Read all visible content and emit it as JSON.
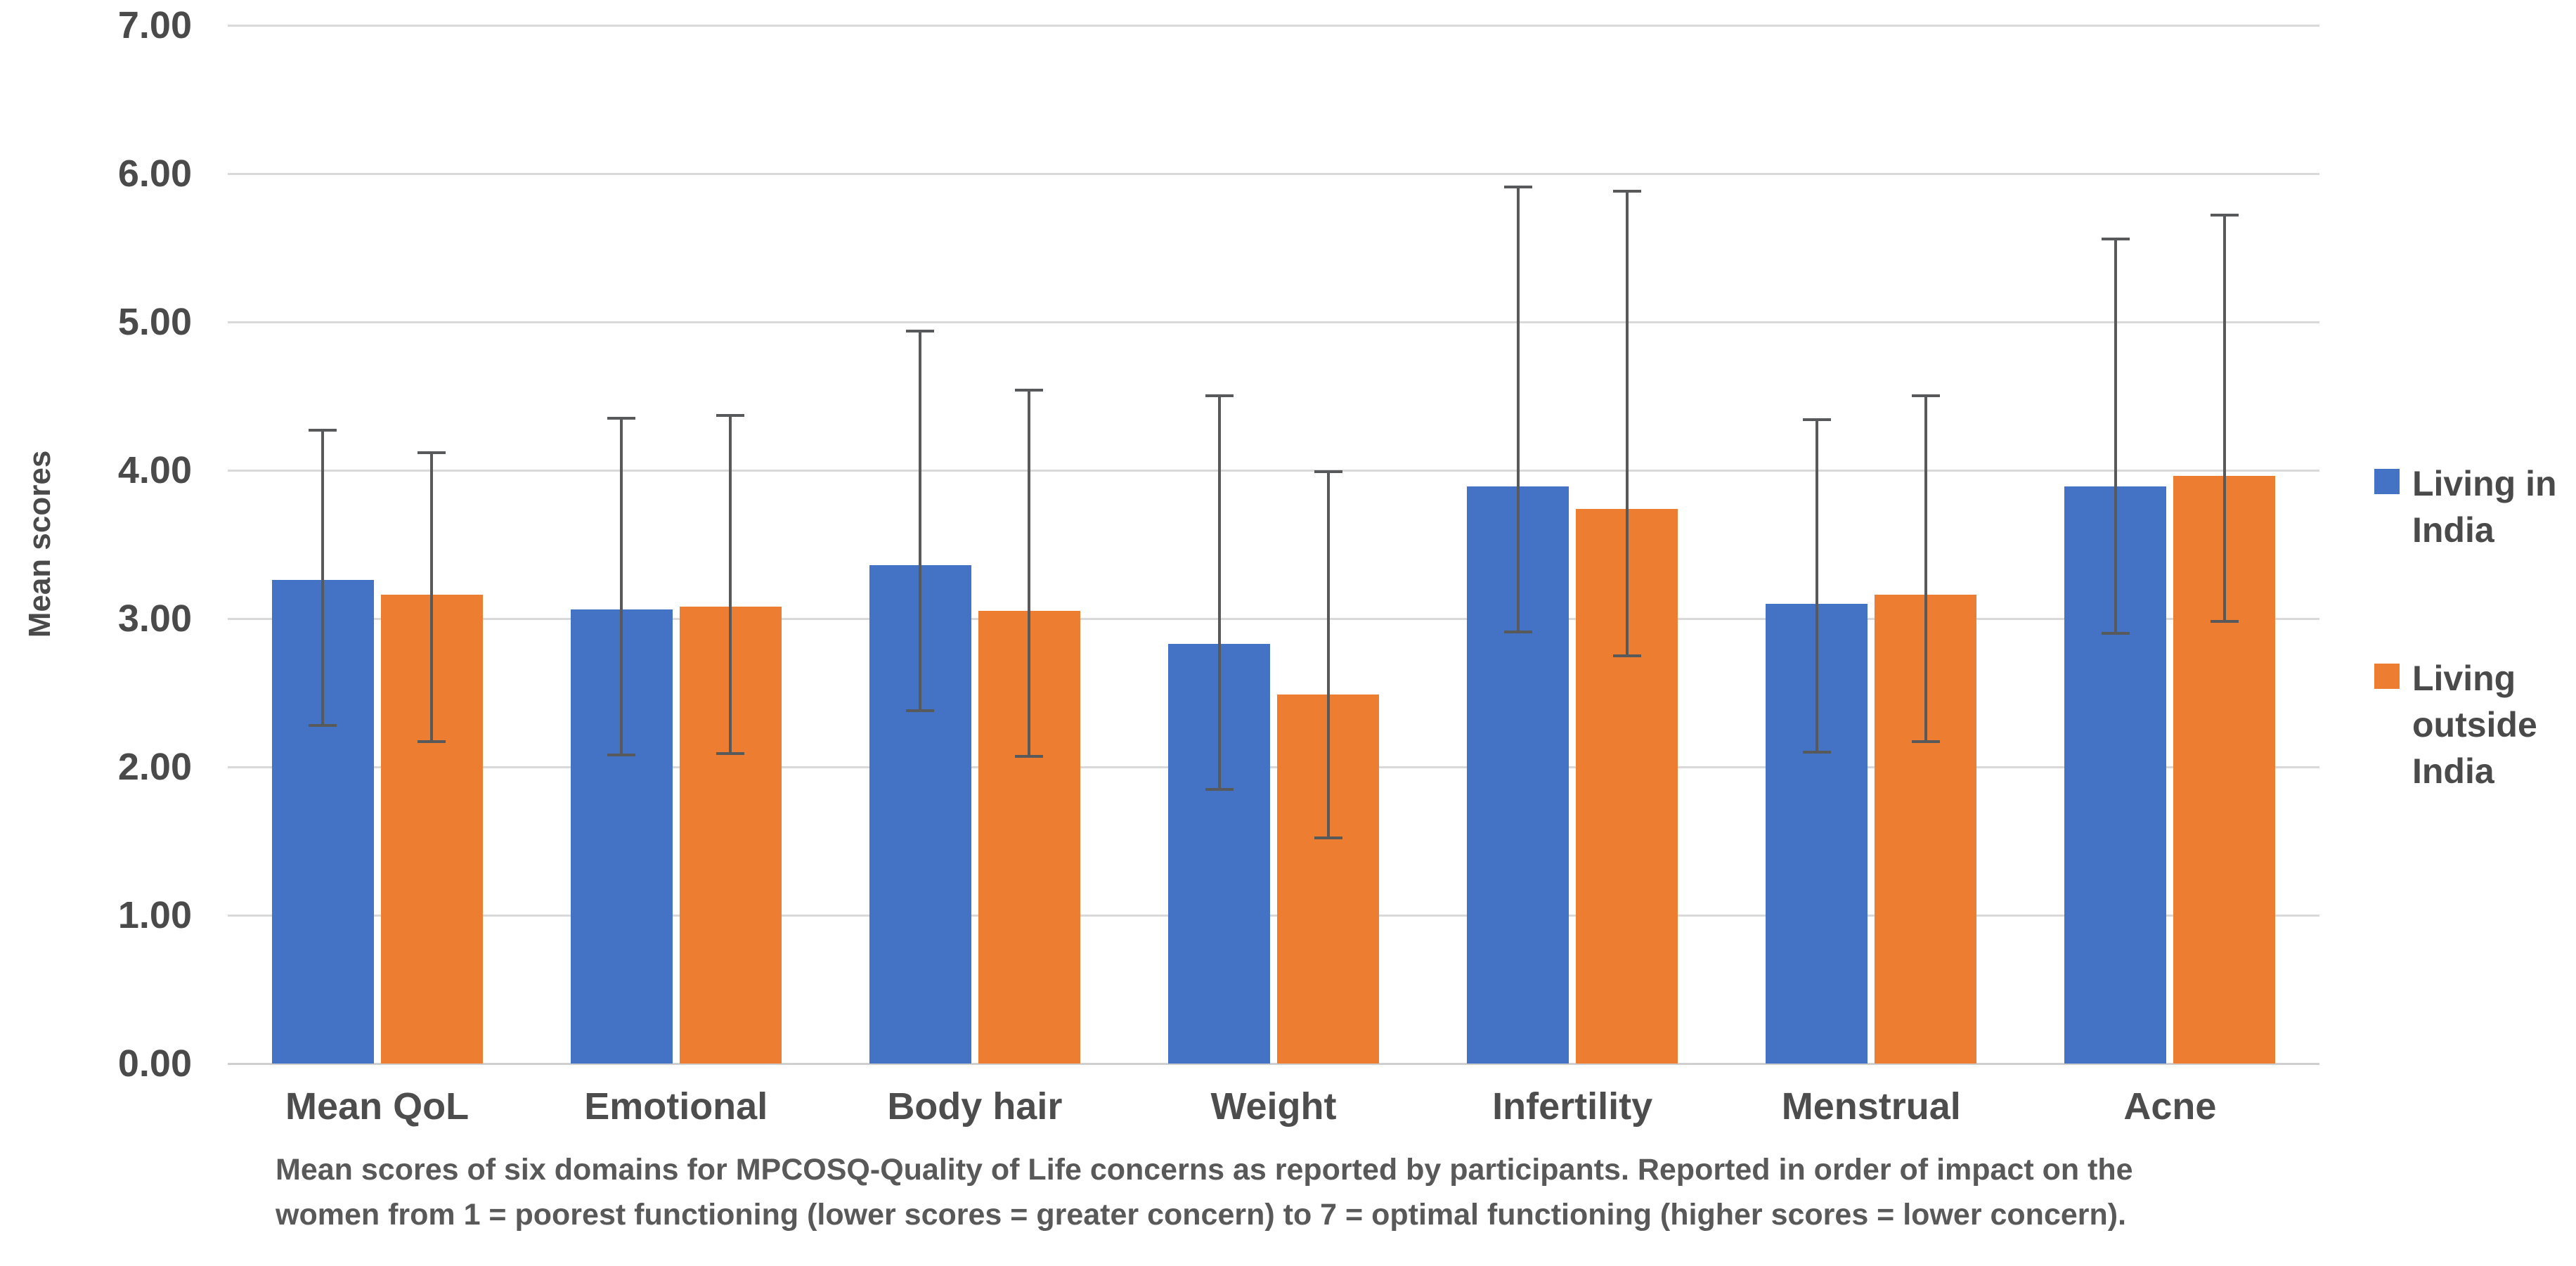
{
  "chart_data": {
    "type": "bar",
    "title": "",
    "ylabel": "Mean scores",
    "xlabel": "",
    "ylim": [
      0,
      7
    ],
    "grid": true,
    "legend_position": "right",
    "yticks": [
      "7.00",
      "6.00",
      "5.00",
      "4.00",
      "3.00",
      "2.00",
      "1.00",
      "0.00"
    ],
    "categories": [
      "Mean QoL",
      "Emotional",
      "Body hair",
      "Weight",
      "Infertility",
      "Menstrual",
      "Acne"
    ],
    "series": [
      {
        "name": "Living in India",
        "color": "#4472C4",
        "values": [
          3.26,
          3.06,
          3.36,
          2.83,
          3.89,
          3.1,
          3.89
        ],
        "error_top": [
          4.28,
          4.36,
          4.95,
          4.51,
          5.92,
          4.35,
          5.57
        ],
        "error_bottom": [
          2.27,
          2.07,
          2.37,
          1.84,
          2.9,
          2.09,
          2.89
        ]
      },
      {
        "name": "Living outside India",
        "color": "#ED7D31",
        "values": [
          3.16,
          3.08,
          3.05,
          2.49,
          3.74,
          3.16,
          3.96
        ],
        "error_top": [
          4.13,
          4.38,
          4.55,
          4.0,
          5.89,
          4.51,
          5.73
        ],
        "error_bottom": [
          2.16,
          2.08,
          2.06,
          1.51,
          2.74,
          2.16,
          2.97
        ]
      }
    ],
    "error_bar_color": "#58595b",
    "gridline_color": "#d9d9d9",
    "caption_line1": "Mean scores of six domains for MPCOSQ-Quality of Life concerns as reported by participants. Reported in order of impact on the",
    "caption_line2": "women from 1 = poorest functioning (lower scores = greater concern) to 7 = optimal functioning (higher scores = lower concern)."
  }
}
